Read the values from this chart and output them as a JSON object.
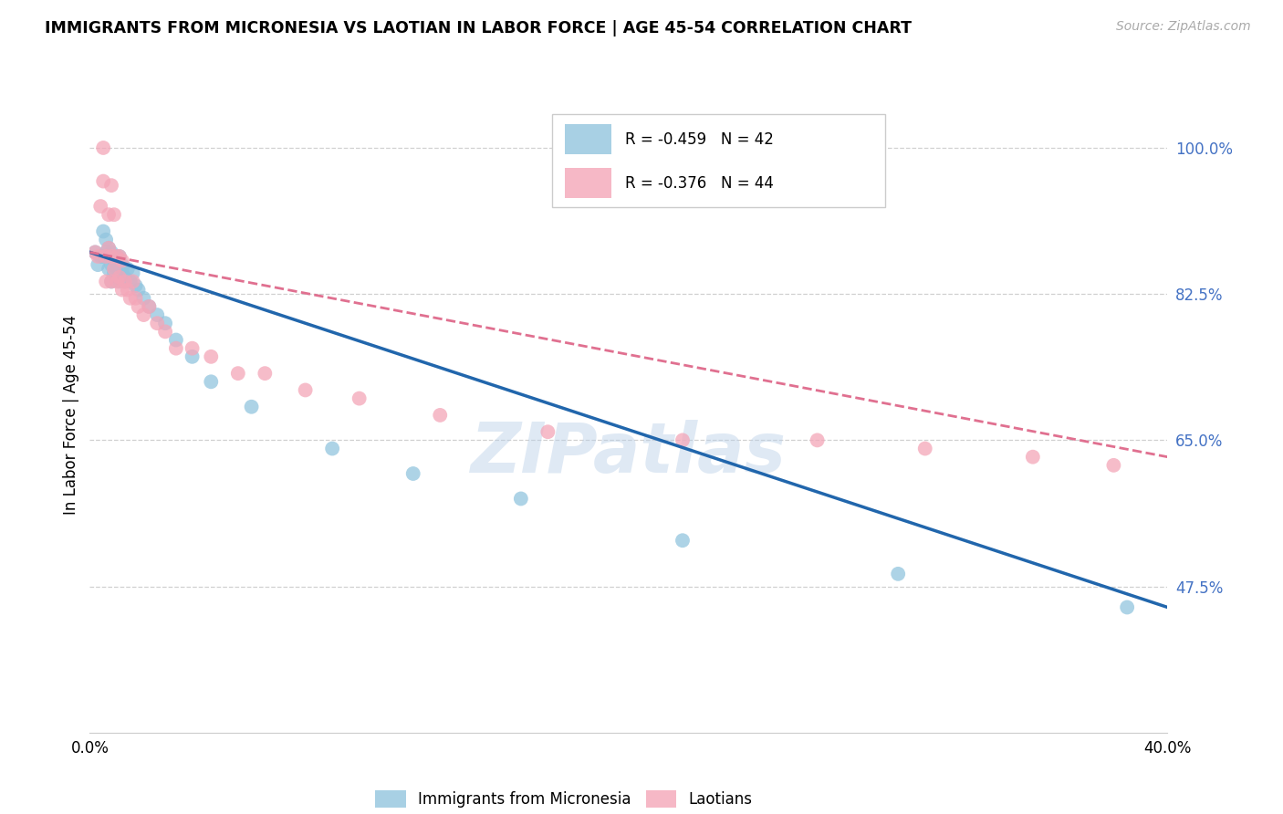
{
  "title": "IMMIGRANTS FROM MICRONESIA VS LAOTIAN IN LABOR FORCE | AGE 45-54 CORRELATION CHART",
  "source": "Source: ZipAtlas.com",
  "ylabel": "In Labor Force | Age 45-54",
  "right_ytick_vals": [
    1.0,
    0.825,
    0.65,
    0.475
  ],
  "right_ytick_labels": [
    "100.0%",
    "82.5%",
    "65.0%",
    "47.5%"
  ],
  "watermark": "ZIPatlas",
  "blue_label": "Immigrants from Micronesia",
  "pink_label": "Laotians",
  "blue_R": "-0.459",
  "blue_N": "42",
  "pink_R": "-0.376",
  "pink_N": "44",
  "blue_color": "#92c5de",
  "pink_color": "#f4a6b8",
  "blue_line_color": "#2166ac",
  "pink_line_color": "#e07090",
  "xlim": [
    0.0,
    0.4
  ],
  "ylim": [
    0.3,
    1.06
  ],
  "blue_scatter_x": [
    0.002,
    0.003,
    0.004,
    0.005,
    0.005,
    0.006,
    0.006,
    0.007,
    0.007,
    0.008,
    0.008,
    0.008,
    0.009,
    0.009,
    0.01,
    0.01,
    0.01,
    0.011,
    0.011,
    0.012,
    0.012,
    0.013,
    0.013,
    0.014,
    0.015,
    0.016,
    0.017,
    0.018,
    0.02,
    0.022,
    0.025,
    0.028,
    0.032,
    0.038,
    0.045,
    0.06,
    0.09,
    0.12,
    0.16,
    0.22,
    0.3,
    0.385
  ],
  "blue_scatter_y": [
    0.875,
    0.86,
    0.87,
    0.9,
    0.87,
    0.89,
    0.875,
    0.88,
    0.855,
    0.86,
    0.875,
    0.84,
    0.865,
    0.85,
    0.87,
    0.86,
    0.845,
    0.87,
    0.84,
    0.855,
    0.86,
    0.84,
    0.845,
    0.855,
    0.84,
    0.85,
    0.835,
    0.83,
    0.82,
    0.81,
    0.8,
    0.79,
    0.77,
    0.75,
    0.72,
    0.69,
    0.64,
    0.61,
    0.58,
    0.53,
    0.49,
    0.45
  ],
  "pink_scatter_x": [
    0.002,
    0.003,
    0.004,
    0.005,
    0.005,
    0.006,
    0.006,
    0.007,
    0.007,
    0.008,
    0.008,
    0.008,
    0.009,
    0.009,
    0.01,
    0.01,
    0.011,
    0.011,
    0.012,
    0.012,
    0.013,
    0.014,
    0.015,
    0.016,
    0.017,
    0.018,
    0.02,
    0.022,
    0.025,
    0.028,
    0.032,
    0.038,
    0.045,
    0.055,
    0.065,
    0.08,
    0.1,
    0.13,
    0.17,
    0.22,
    0.27,
    0.31,
    0.35,
    0.38
  ],
  "pink_scatter_y": [
    0.875,
    0.87,
    0.93,
    1.0,
    0.96,
    0.87,
    0.84,
    0.92,
    0.88,
    0.955,
    0.87,
    0.84,
    0.92,
    0.855,
    0.87,
    0.84,
    0.87,
    0.845,
    0.83,
    0.865,
    0.84,
    0.83,
    0.82,
    0.84,
    0.82,
    0.81,
    0.8,
    0.81,
    0.79,
    0.78,
    0.76,
    0.76,
    0.75,
    0.73,
    0.73,
    0.71,
    0.7,
    0.68,
    0.66,
    0.65,
    0.65,
    0.64,
    0.63,
    0.62
  ],
  "blue_line_x": [
    0.0,
    0.4
  ],
  "blue_line_y": [
    0.875,
    0.45
  ],
  "pink_line_x": [
    0.0,
    0.4
  ],
  "pink_line_y": [
    0.875,
    0.63
  ],
  "grid_color": "#d0d0d0",
  "spine_color": "#cccccc",
  "xtick_label_left": "0.0%",
  "xtick_label_right": "40.0%"
}
